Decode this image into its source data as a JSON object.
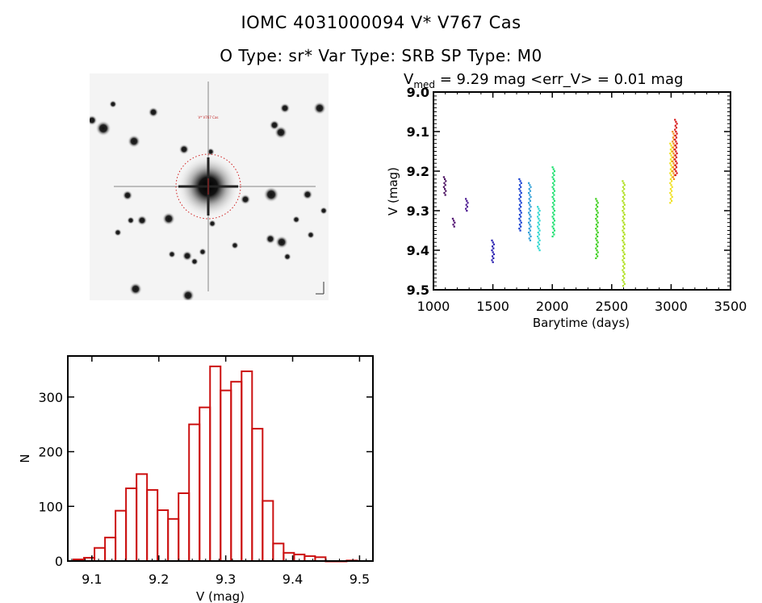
{
  "header": {
    "title": "IOMC 4031000094    V* V767 Cas",
    "subtitle": "O Type: sr*  Var Type: SRB  SP Type: M0"
  },
  "finder_image": {
    "target_label": "V* V767 Cas",
    "marker_color": "#d02020"
  },
  "chart_data": [
    {
      "type": "scatter",
      "title_prefix": "V",
      "title_subscript": "med",
      "title_rest": " = 9.29 mag  <err_V> = 0.01 mag",
      "xlabel": "Barytime (days)",
      "ylabel": "V (mag)",
      "xlim": [
        1000,
        3500
      ],
      "ylim": [
        9.0,
        9.5
      ],
      "y_inverted": true,
      "xticks": [
        1000,
        1500,
        2000,
        2500,
        3000,
        3500
      ],
      "xtick_labels": [
        "1000",
        "1500",
        "2000",
        "2500",
        "3000",
        "3500"
      ],
      "yticks": [
        9.0,
        9.1,
        9.2,
        9.3,
        9.4,
        9.5
      ],
      "ytick_labels": [
        "9.0",
        "9.1",
        "9.2",
        "9.3",
        "9.4",
        "9.5"
      ],
      "grid": false,
      "color_scale": "time (rainbow: purple to red)",
      "clusters": [
        {
          "t": 1095,
          "vmin": 9.215,
          "vmax": 9.26,
          "color": "#4a1060"
        },
        {
          "t": 1170,
          "vmin": 9.32,
          "vmax": 9.34,
          "color": "#501070"
        },
        {
          "t": 1280,
          "vmin": 9.27,
          "vmax": 9.3,
          "color": "#4a1890"
        },
        {
          "t": 1500,
          "vmin": 9.375,
          "vmax": 9.43,
          "color": "#2a20b0"
        },
        {
          "t": 1730,
          "vmin": 9.22,
          "vmax": 9.35,
          "color": "#1840d0"
        },
        {
          "t": 1810,
          "vmin": 9.23,
          "vmax": 9.375,
          "color": "#30a0d8"
        },
        {
          "t": 1885,
          "vmin": 9.29,
          "vmax": 9.4,
          "color": "#30d8d0"
        },
        {
          "t": 2010,
          "vmin": 9.19,
          "vmax": 9.365,
          "color": "#20e070"
        },
        {
          "t": 2375,
          "vmin": 9.27,
          "vmax": 9.42,
          "color": "#40d020"
        },
        {
          "t": 2600,
          "vmin": 9.225,
          "vmax": 9.49,
          "color": "#b0e020"
        },
        {
          "t": 3000,
          "vmin": 9.13,
          "vmax": 9.28,
          "color": "#f0e020"
        },
        {
          "t": 3020,
          "vmin": 9.1,
          "vmax": 9.22,
          "color": "#f09020"
        },
        {
          "t": 3040,
          "vmin": 9.07,
          "vmax": 9.21,
          "color": "#d81818"
        }
      ]
    },
    {
      "type": "bar",
      "subtype": "histogram",
      "xlabel": "V (mag)",
      "ylabel": "N",
      "xlim": [
        9.064,
        9.52
      ],
      "ylim": [
        0,
        375
      ],
      "xticks": [
        9.1,
        9.2,
        9.3,
        9.4,
        9.5
      ],
      "xtick_labels": [
        "9.1",
        "9.2",
        "9.3",
        "9.4",
        "9.5"
      ],
      "yticks": [
        0,
        100,
        200,
        300
      ],
      "ytick_labels": [
        "0",
        "100",
        "200",
        "300"
      ],
      "grid": false,
      "bar_color": "#cc1111",
      "bin_width": 0.0157,
      "bin_start": 9.0725,
      "counts": [
        3,
        6,
        24,
        43,
        92,
        133,
        159,
        130,
        93,
        77,
        124,
        250,
        281,
        356,
        312,
        328,
        347,
        242,
        110,
        32,
        15,
        12,
        9,
        7,
        0,
        0,
        1
      ]
    }
  ]
}
